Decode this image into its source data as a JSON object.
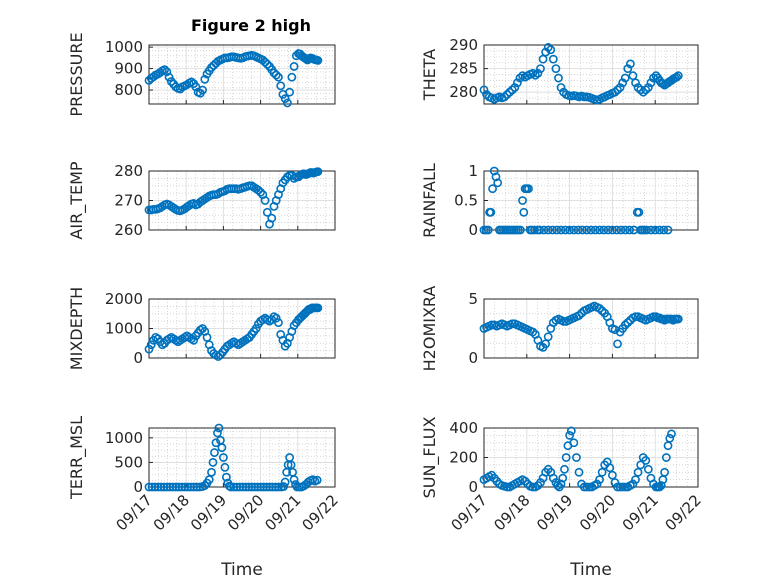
{
  "figure": {
    "title": "Figure 2 high",
    "x_tick_labels": [
      "09/17",
      "09/18",
      "09/19",
      "09/20",
      "09/21",
      "09/22"
    ],
    "x_axis_label": "Time",
    "marker_color": "#0072BD",
    "grid": "on (major + minor dotted)"
  },
  "chart_data": [
    {
      "type": "scatter",
      "name": "pressure",
      "ylabel": "PRESSURE",
      "xlim": [
        0,
        5
      ],
      "ylim": [
        735,
        1010
      ],
      "yticks": [
        800,
        900,
        1000
      ],
      "x": [
        0.0,
        0.06,
        0.12,
        0.18,
        0.24,
        0.3,
        0.36,
        0.42,
        0.48,
        0.54,
        0.6,
        0.66,
        0.72,
        0.78,
        0.84,
        0.9,
        0.96,
        1.02,
        1.08,
        1.14,
        1.2,
        1.26,
        1.32,
        1.38,
        1.44,
        1.5,
        1.56,
        1.62,
        1.68,
        1.74,
        1.8,
        1.86,
        1.92,
        1.98,
        2.04,
        2.1,
        2.16,
        2.22,
        2.28,
        2.34,
        2.4,
        2.46,
        2.52,
        2.58,
        2.64,
        2.7,
        2.76,
        2.82,
        2.88,
        2.94,
        3.0,
        3.06,
        3.12,
        3.18,
        3.24,
        3.3,
        3.36,
        3.42,
        3.48,
        3.54,
        3.6,
        3.66,
        3.72,
        3.78,
        3.84,
        3.9,
        3.96,
        4.02,
        4.06,
        4.1,
        4.14,
        4.18,
        4.22,
        4.26,
        4.3,
        4.34,
        4.38,
        4.42,
        4.46,
        4.5,
        4.54
      ],
      "y": [
        845,
        855,
        862,
        870,
        875,
        882,
        890,
        895,
        885,
        860,
        840,
        828,
        815,
        808,
        805,
        815,
        820,
        825,
        832,
        838,
        830,
        815,
        790,
        785,
        800,
        850,
        875,
        890,
        905,
        915,
        925,
        935,
        940,
        945,
        950,
        950,
        952,
        955,
        955,
        952,
        950,
        948,
        950,
        955,
        958,
        960,
        962,
        960,
        955,
        950,
        945,
        940,
        930,
        920,
        910,
        895,
        880,
        870,
        860,
        820,
        780,
        760,
        740,
        790,
        860,
        910,
        960,
        970,
        968,
        960,
        955,
        950,
        945,
        940,
        945,
        950,
        948,
        945,
        942,
        940,
        938
      ]
    },
    {
      "type": "scatter",
      "name": "theta",
      "ylabel": "THETA",
      "xlim": [
        0,
        5
      ],
      "ylim": [
        277.5,
        290
      ],
      "yticks": [
        280,
        285,
        290
      ],
      "x": [
        0.0,
        0.06,
        0.12,
        0.18,
        0.24,
        0.3,
        0.36,
        0.42,
        0.48,
        0.54,
        0.6,
        0.66,
        0.72,
        0.78,
        0.84,
        0.9,
        0.96,
        1.02,
        1.08,
        1.14,
        1.2,
        1.26,
        1.32,
        1.38,
        1.44,
        1.5,
        1.56,
        1.62,
        1.68,
        1.74,
        1.8,
        1.86,
        1.92,
        1.98,
        2.04,
        2.1,
        2.16,
        2.22,
        2.28,
        2.34,
        2.4,
        2.46,
        2.52,
        2.58,
        2.64,
        2.7,
        2.76,
        2.82,
        2.88,
        2.94,
        3.0,
        3.06,
        3.12,
        3.18,
        3.24,
        3.3,
        3.36,
        3.42,
        3.48,
        3.54,
        3.6,
        3.66,
        3.72,
        3.78,
        3.84,
        3.9,
        3.96,
        4.02,
        4.06,
        4.1,
        4.14,
        4.18,
        4.22,
        4.26,
        4.3,
        4.34,
        4.38,
        4.42,
        4.46,
        4.5,
        4.54
      ],
      "y": [
        280.5,
        279.5,
        279,
        278.8,
        278.5,
        278.8,
        279,
        278.8,
        279,
        279.5,
        280,
        280.5,
        281,
        282,
        283,
        283.5,
        283.2,
        283.5,
        283.8,
        284,
        283.6,
        284,
        285,
        287,
        288.5,
        289.5,
        289,
        287,
        285,
        283,
        281,
        280,
        279.5,
        279.3,
        279.2,
        279.3,
        279.2,
        279,
        279.2,
        279,
        279,
        278.9,
        278.7,
        278.5,
        278.3,
        278.5,
        278.8,
        279,
        279.3,
        279.5,
        279.8,
        280,
        280.5,
        281,
        282,
        283,
        285,
        286,
        283.5,
        282,
        281,
        280.5,
        280,
        280.5,
        281,
        282,
        283,
        283.5,
        283,
        282.5,
        282,
        281.8,
        281.5,
        281.8,
        282,
        282.3,
        282.5,
        282.8,
        283,
        283.2,
        283.5
      ]
    },
    {
      "type": "scatter",
      "name": "air_temp",
      "ylabel": "AIR_TEMP",
      "xlim": [
        0,
        5
      ],
      "ylim": [
        260,
        280
      ],
      "yticks": [
        260,
        270,
        280
      ],
      "x": [
        0.0,
        0.06,
        0.12,
        0.18,
        0.24,
        0.3,
        0.36,
        0.42,
        0.48,
        0.54,
        0.6,
        0.66,
        0.72,
        0.78,
        0.84,
        0.9,
        0.96,
        1.02,
        1.08,
        1.14,
        1.2,
        1.26,
        1.32,
        1.38,
        1.44,
        1.5,
        1.56,
        1.62,
        1.68,
        1.74,
        1.8,
        1.86,
        1.92,
        1.98,
        2.04,
        2.1,
        2.16,
        2.22,
        2.28,
        2.34,
        2.4,
        2.46,
        2.52,
        2.58,
        2.64,
        2.7,
        2.76,
        2.82,
        2.88,
        2.94,
        3.0,
        3.06,
        3.12,
        3.18,
        3.24,
        3.3,
        3.36,
        3.42,
        3.48,
        3.54,
        3.6,
        3.66,
        3.72,
        3.78,
        3.84,
        3.9,
        3.96,
        4.02,
        4.06,
        4.1,
        4.14,
        4.18,
        4.22,
        4.26,
        4.3,
        4.34,
        4.38,
        4.42,
        4.46,
        4.5,
        4.54
      ],
      "y": [
        266.8,
        266.8,
        267,
        267,
        267.2,
        267.5,
        268,
        268.5,
        268.8,
        268.5,
        268,
        267.5,
        267,
        266.6,
        266.5,
        266.8,
        267.2,
        267.8,
        268.3,
        268.8,
        269,
        268.5,
        268.8,
        269.5,
        270,
        270.5,
        271,
        271.5,
        271.8,
        272,
        272,
        272.3,
        272.8,
        273,
        273.3,
        273.8,
        274,
        274,
        274,
        274,
        273.8,
        274,
        274.3,
        274.5,
        274.8,
        275,
        275,
        274.5,
        274,
        273.5,
        272.8,
        272,
        270,
        266,
        262,
        264,
        268,
        270,
        272,
        274,
        276,
        277,
        278,
        278.5,
        278.5,
        277.5,
        278,
        278,
        278.5,
        278.8,
        279,
        279,
        278.8,
        279,
        279.2,
        279.5,
        279.5,
        279.3,
        279.5,
        279.7,
        279.8
      ]
    },
    {
      "type": "scatter",
      "name": "rainfall",
      "ylabel": "RAINFALL",
      "xlim": [
        0,
        5
      ],
      "ylim": [
        0,
        1
      ],
      "yticks": [
        0,
        0.5,
        1
      ],
      "x": [
        0.0,
        0.05,
        0.1,
        0.13,
        0.16,
        0.2,
        0.24,
        0.28,
        0.32,
        0.36,
        0.4,
        0.45,
        0.5,
        0.55,
        0.6,
        0.65,
        0.7,
        0.75,
        0.8,
        0.85,
        0.9,
        0.93,
        0.96,
        1.0,
        1.04,
        1.08,
        1.12,
        1.18,
        1.25,
        1.3,
        1.4,
        1.5,
        1.6,
        1.7,
        1.8,
        1.9,
        2.0,
        2.1,
        2.2,
        2.3,
        2.4,
        2.5,
        2.6,
        2.7,
        2.8,
        2.9,
        3.0,
        3.1,
        3.2,
        3.3,
        3.4,
        3.5,
        3.58,
        3.62,
        3.66,
        3.7,
        3.75,
        3.8,
        3.9,
        4.0,
        4.1,
        4.2,
        4.3
      ],
      "y": [
        0,
        0,
        0,
        0.3,
        0.3,
        0.7,
        1.0,
        0.9,
        0.8,
        0,
        0,
        0,
        0,
        0,
        0,
        0,
        0,
        0,
        0,
        0,
        0.5,
        0.3,
        0.7,
        0.7,
        0.7,
        0,
        0,
        0,
        0,
        0,
        0,
        0,
        0,
        0,
        0,
        0,
        0,
        0,
        0,
        0,
        0,
        0,
        0,
        0,
        0,
        0,
        0,
        0,
        0,
        0,
        0,
        0,
        0.3,
        0.3,
        0,
        0,
        0,
        0,
        0,
        0,
        0,
        0,
        0
      ]
    },
    {
      "type": "scatter",
      "name": "mixdepth",
      "ylabel": "MIXDEPTH",
      "xlim": [
        0,
        5
      ],
      "ylim": [
        0,
        2000
      ],
      "yticks": [
        0,
        1000,
        2000
      ],
      "x": [
        0.0,
        0.06,
        0.12,
        0.18,
        0.24,
        0.3,
        0.36,
        0.42,
        0.48,
        0.54,
        0.6,
        0.66,
        0.72,
        0.78,
        0.84,
        0.9,
        0.96,
        1.02,
        1.08,
        1.14,
        1.2,
        1.26,
        1.32,
        1.38,
        1.44,
        1.5,
        1.56,
        1.62,
        1.68,
        1.74,
        1.8,
        1.86,
        1.92,
        1.98,
        2.04,
        2.1,
        2.16,
        2.22,
        2.28,
        2.34,
        2.4,
        2.46,
        2.52,
        2.58,
        2.64,
        2.7,
        2.76,
        2.82,
        2.88,
        2.94,
        3.0,
        3.06,
        3.12,
        3.18,
        3.24,
        3.3,
        3.36,
        3.42,
        3.48,
        3.54,
        3.6,
        3.66,
        3.72,
        3.78,
        3.84,
        3.9,
        3.96,
        4.02,
        4.06,
        4.1,
        4.14,
        4.18,
        4.22,
        4.26,
        4.3,
        4.34,
        4.38,
        4.42,
        4.46,
        4.5,
        4.54
      ],
      "y": [
        300,
        450,
        600,
        700,
        650,
        550,
        450,
        500,
        600,
        650,
        700,
        650,
        600,
        550,
        600,
        650,
        700,
        750,
        700,
        650,
        600,
        750,
        850,
        950,
        1000,
        900,
        700,
        450,
        250,
        150,
        100,
        50,
        100,
        200,
        300,
        400,
        450,
        500,
        550,
        500,
        450,
        500,
        550,
        600,
        650,
        700,
        800,
        900,
        1000,
        1150,
        1250,
        1300,
        1350,
        1300,
        1250,
        1300,
        1400,
        1350,
        1200,
        800,
        600,
        400,
        500,
        700,
        900,
        1100,
        1200,
        1300,
        1350,
        1400,
        1450,
        1500,
        1550,
        1600,
        1650,
        1650,
        1700,
        1700,
        1700,
        1700,
        1700
      ]
    },
    {
      "type": "scatter",
      "name": "h2omixra",
      "ylabel": "H2OMIXRA",
      "xlim": [
        0,
        5
      ],
      "ylim": [
        0,
        5
      ],
      "yticks": [
        0,
        5
      ],
      "x": [
        0.0,
        0.06,
        0.12,
        0.18,
        0.24,
        0.3,
        0.36,
        0.42,
        0.48,
        0.54,
        0.6,
        0.66,
        0.72,
        0.78,
        0.84,
        0.9,
        0.96,
        1.02,
        1.08,
        1.14,
        1.2,
        1.26,
        1.32,
        1.38,
        1.44,
        1.5,
        1.56,
        1.62,
        1.68,
        1.74,
        1.8,
        1.86,
        1.92,
        1.98,
        2.04,
        2.1,
        2.16,
        2.22,
        2.28,
        2.34,
        2.4,
        2.46,
        2.52,
        2.58,
        2.64,
        2.7,
        2.76,
        2.82,
        2.88,
        2.94,
        3.0,
        3.06,
        3.12,
        3.18,
        3.24,
        3.3,
        3.36,
        3.42,
        3.48,
        3.54,
        3.6,
        3.66,
        3.72,
        3.78,
        3.84,
        3.9,
        3.96,
        4.02,
        4.06,
        4.1,
        4.14,
        4.18,
        4.22,
        4.26,
        4.3,
        4.34,
        4.38,
        4.42,
        4.46,
        4.5,
        4.54
      ],
      "y": [
        2.5,
        2.6,
        2.7,
        2.8,
        2.8,
        2.7,
        2.8,
        2.9,
        2.8,
        2.7,
        2.8,
        2.9,
        2.9,
        2.8,
        2.7,
        2.6,
        2.5,
        2.4,
        2.3,
        2.2,
        2.0,
        1.5,
        1.0,
        0.9,
        1.2,
        1.8,
        2.5,
        3.0,
        3.2,
        3.3,
        3.2,
        3.1,
        3.1,
        3.2,
        3.3,
        3.4,
        3.5,
        3.6,
        3.8,
        4.0,
        4.1,
        4.2,
        4.3,
        4.4,
        4.3,
        4.2,
        4.0,
        3.8,
        3.5,
        3.0,
        2.5,
        2.4,
        1.2,
        2.2,
        2.5,
        2.8,
        3.0,
        3.2,
        3.4,
        3.5,
        3.5,
        3.4,
        3.3,
        3.2,
        3.3,
        3.4,
        3.5,
        3.5,
        3.4,
        3.4,
        3.3,
        3.3,
        3.2,
        3.3,
        3.3,
        3.3,
        3.3,
        3.2,
        3.3,
        3.3,
        3.3
      ]
    },
    {
      "type": "scatter",
      "name": "terr_msl",
      "ylabel": "TERR_MSL",
      "xlim": [
        0,
        5
      ],
      "ylim": [
        0,
        1200
      ],
      "yticks": [
        0,
        500,
        1000
      ],
      "x": [
        0.0,
        0.08,
        0.16,
        0.24,
        0.32,
        0.4,
        0.48,
        0.56,
        0.64,
        0.72,
        0.8,
        0.88,
        0.96,
        1.04,
        1.12,
        1.2,
        1.28,
        1.36,
        1.44,
        1.5,
        1.56,
        1.62,
        1.68,
        1.72,
        1.76,
        1.8,
        1.84,
        1.88,
        1.92,
        1.96,
        2.0,
        2.04,
        2.08,
        2.12,
        2.16,
        2.2,
        2.28,
        2.36,
        2.44,
        2.52,
        2.6,
        2.68,
        2.76,
        2.84,
        2.92,
        3.0,
        3.08,
        3.16,
        3.24,
        3.32,
        3.4,
        3.48,
        3.56,
        3.62,
        3.66,
        3.7,
        3.74,
        3.78,
        3.82,
        3.86,
        3.9,
        3.94,
        3.98,
        4.04,
        4.1,
        4.16,
        4.22,
        4.28,
        4.34,
        4.4,
        4.46,
        4.52
      ],
      "y": [
        0,
        0,
        0,
        0,
        0,
        0,
        0,
        0,
        0,
        0,
        0,
        0,
        0,
        0,
        0,
        0,
        0,
        0,
        10,
        30,
        80,
        150,
        300,
        500,
        700,
        900,
        1100,
        1200,
        950,
        800,
        600,
        400,
        200,
        80,
        20,
        0,
        0,
        0,
        0,
        0,
        0,
        0,
        0,
        0,
        0,
        0,
        0,
        0,
        0,
        0,
        0,
        0,
        0,
        10,
        100,
        300,
        450,
        600,
        450,
        300,
        150,
        50,
        0,
        0,
        0,
        20,
        50,
        100,
        130,
        150,
        120,
        140
      ]
    },
    {
      "type": "scatter",
      "name": "sun_flux",
      "ylabel": "SUN_FLUX",
      "xlim": [
        0,
        5
      ],
      "ylim": [
        0,
        400
      ],
      "yticks": [
        0,
        200,
        400
      ],
      "x": [
        0.0,
        0.06,
        0.12,
        0.18,
        0.24,
        0.3,
        0.36,
        0.42,
        0.48,
        0.54,
        0.6,
        0.66,
        0.72,
        0.78,
        0.84,
        0.9,
        0.96,
        1.02,
        1.08,
        1.14,
        1.2,
        1.26,
        1.32,
        1.38,
        1.44,
        1.5,
        1.56,
        1.62,
        1.68,
        1.72,
        1.76,
        1.8,
        1.84,
        1.88,
        1.92,
        1.96,
        2.0,
        2.04,
        2.1,
        2.16,
        2.22,
        2.28,
        2.34,
        2.4,
        2.46,
        2.52,
        2.58,
        2.64,
        2.7,
        2.76,
        2.82,
        2.88,
        2.94,
        3.0,
        3.06,
        3.12,
        3.18,
        3.24,
        3.3,
        3.36,
        3.42,
        3.48,
        3.54,
        3.6,
        3.66,
        3.72,
        3.78,
        3.84,
        3.9,
        3.96,
        4.02,
        4.06,
        4.1,
        4.14,
        4.18,
        4.22,
        4.26,
        4.3,
        4.34,
        4.38
      ],
      "y": [
        50,
        60,
        70,
        80,
        60,
        40,
        20,
        10,
        5,
        0,
        0,
        10,
        20,
        30,
        40,
        50,
        40,
        20,
        5,
        0,
        0,
        10,
        30,
        60,
        100,
        120,
        100,
        60,
        30,
        10,
        0,
        20,
        60,
        120,
        200,
        280,
        350,
        380,
        300,
        200,
        100,
        20,
        0,
        0,
        0,
        0,
        10,
        20,
        50,
        100,
        150,
        170,
        130,
        80,
        30,
        0,
        0,
        0,
        0,
        0,
        10,
        20,
        50,
        100,
        150,
        200,
        180,
        120,
        60,
        20,
        0,
        0,
        0,
        10,
        50,
        100,
        200,
        280,
        330,
        360
      ]
    }
  ]
}
